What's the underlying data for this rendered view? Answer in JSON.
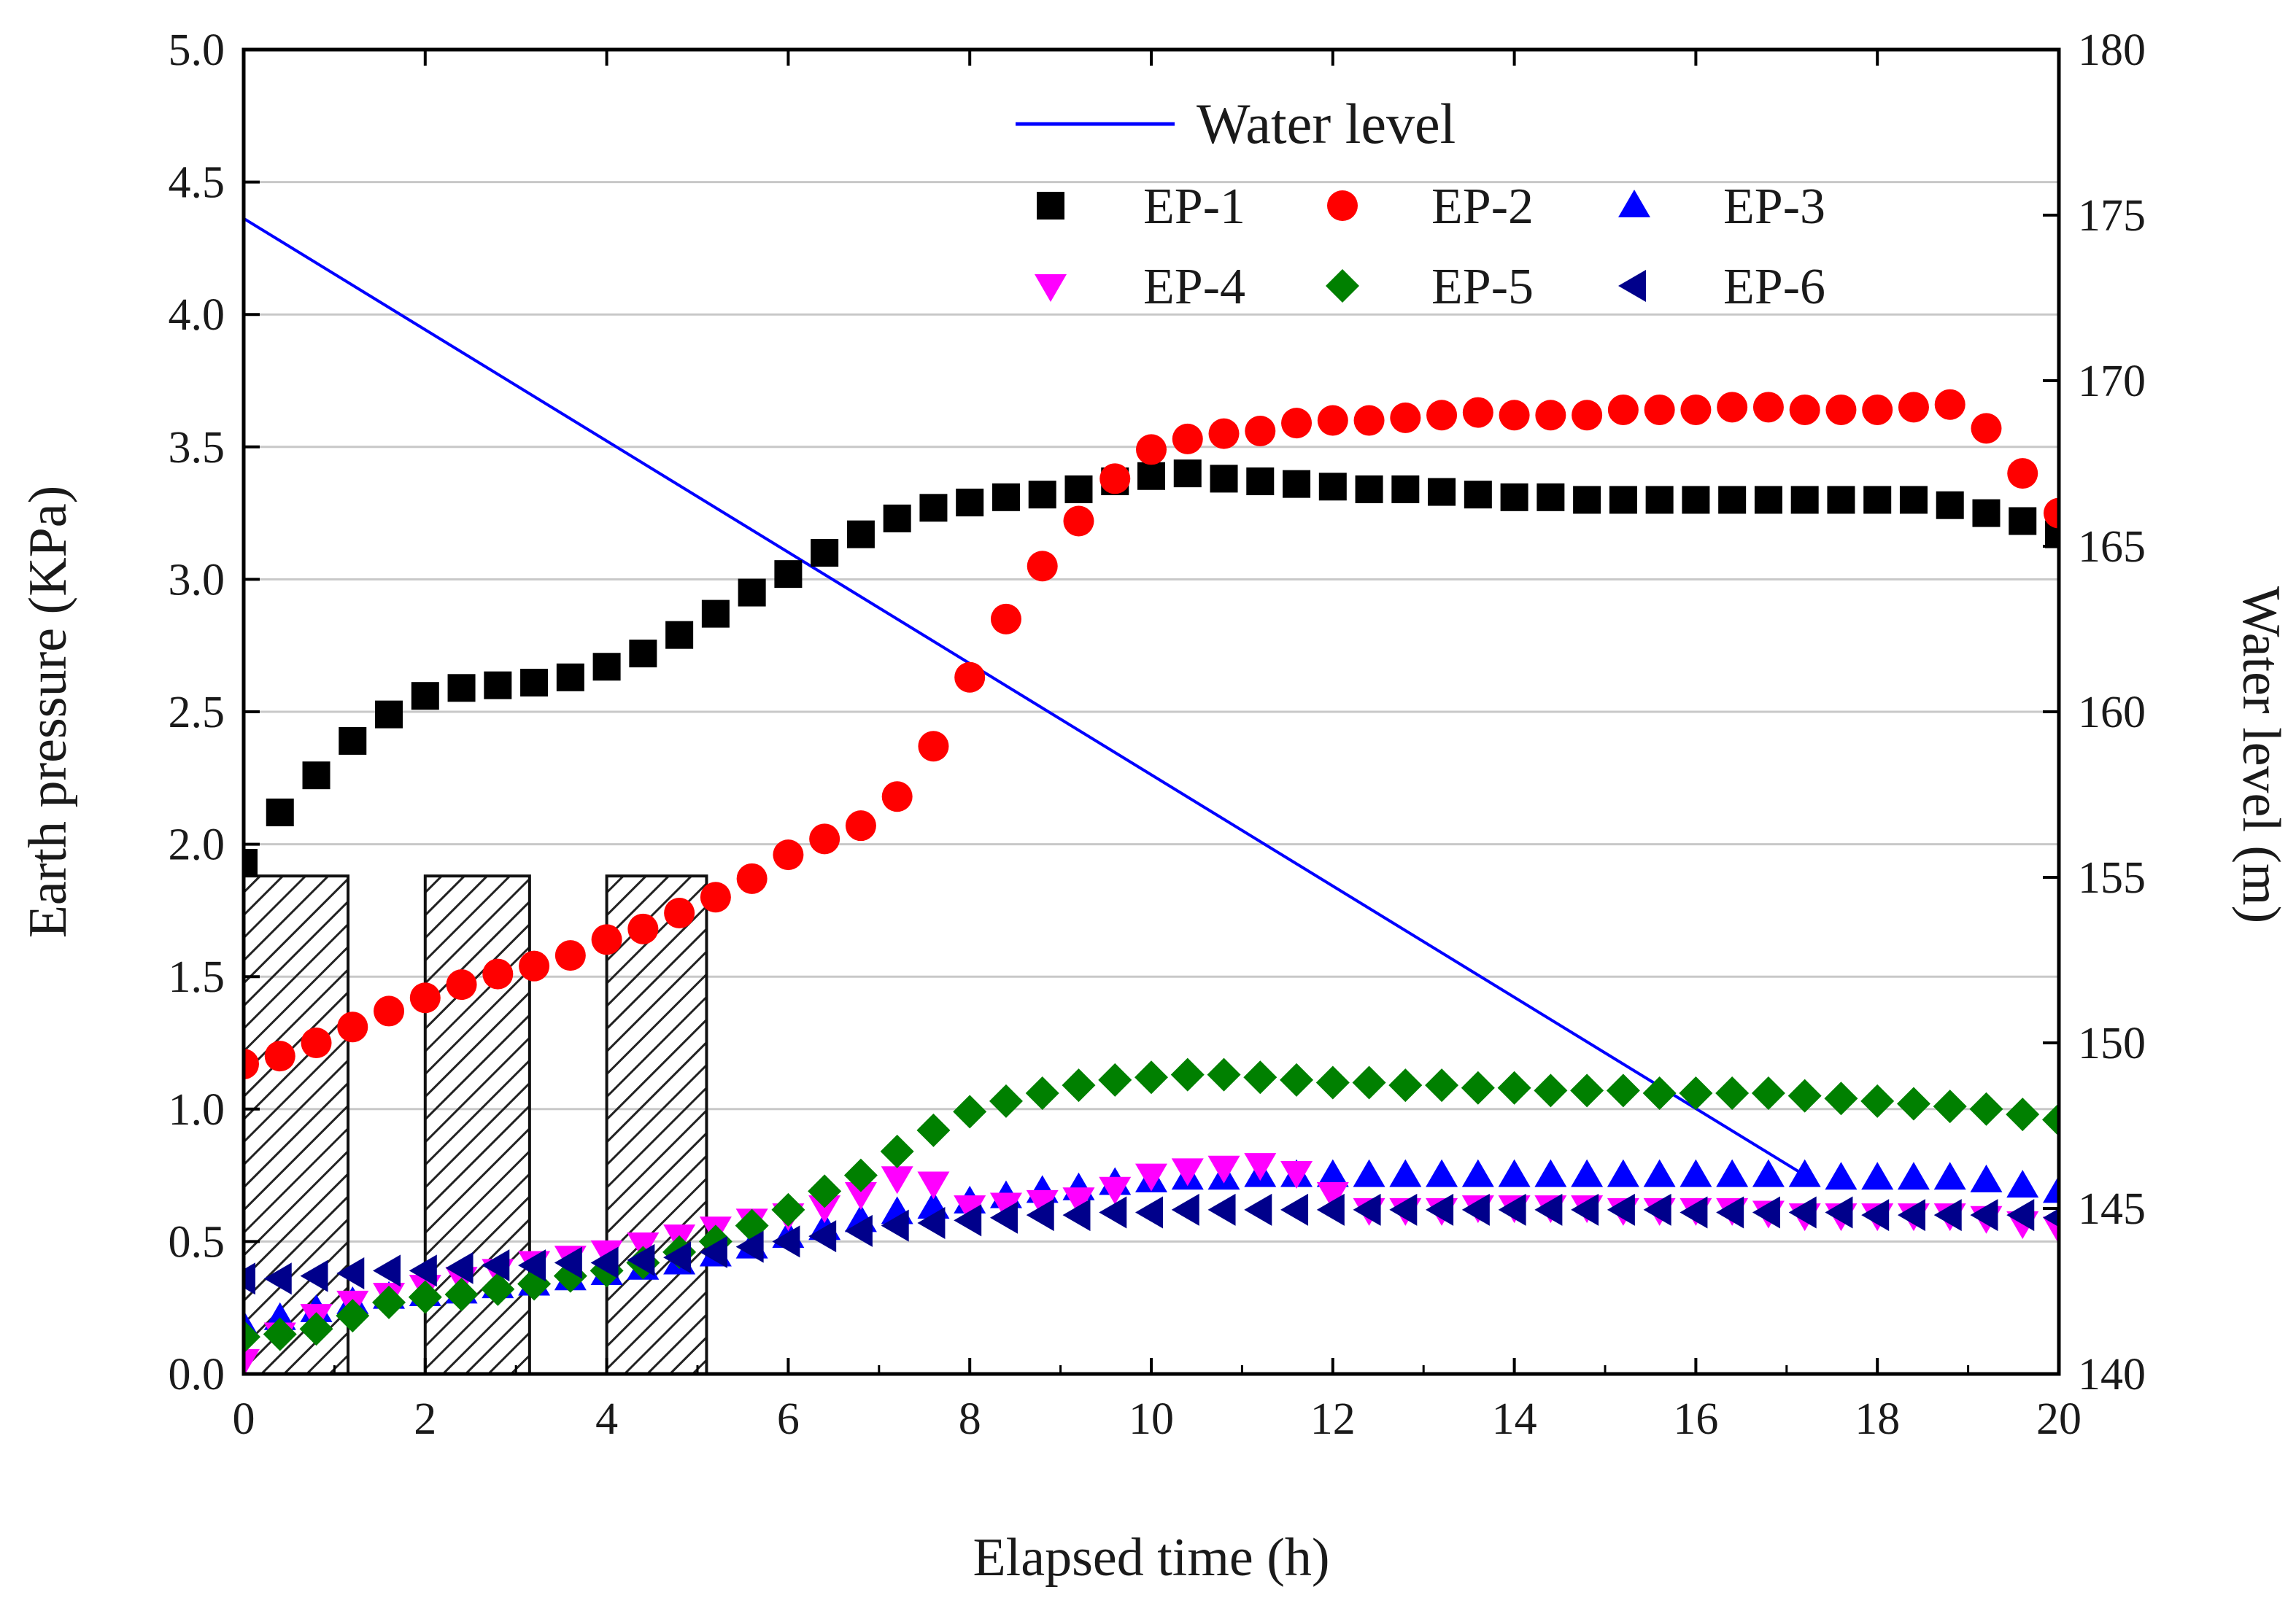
{
  "chart_data": {
    "type": "scatter",
    "xlabel": "Elapsed time (h)",
    "ylabel": "Earth pressure (KPa)",
    "y2label": "Water level (m)",
    "xlim": [
      0,
      20
    ],
    "ylim": [
      0.0,
      5.0
    ],
    "y2lim": [
      140,
      180
    ],
    "x_ticks": [
      "0",
      "2",
      "4",
      "6",
      "8",
      "10",
      "12",
      "14",
      "16",
      "18",
      "20"
    ],
    "y_ticks": [
      "0.0",
      "0.5",
      "1.0",
      "1.5",
      "2.0",
      "2.5",
      "3.0",
      "3.5",
      "4.0",
      "4.5",
      "5.0"
    ],
    "y2_ticks": [
      "140",
      "145",
      "150",
      "155",
      "160",
      "165",
      "170",
      "175",
      "180"
    ],
    "grid": true,
    "legend_position": "top-right",
    "colors": {
      "EP-1": "#000000",
      "EP-2": "#ff0000",
      "EP-3": "#0000ff",
      "EP-4": "#ff00ff",
      "EP-5": "#008000",
      "EP-6": "#00008b",
      "water": "#0000ff",
      "y2_axis_title": "#0000ff"
    },
    "rainfall_bars": [
      {
        "x_start": 0.0,
        "x_end": 1.15,
        "value": 1.88
      },
      {
        "x_start": 2.0,
        "x_end": 3.15,
        "value": 1.88
      },
      {
        "x_start": 4.0,
        "x_end": 5.1,
        "value": 1.88
      }
    ],
    "water_level": {
      "name": "Water level",
      "x": [
        0.0,
        17.2
      ],
      "y": [
        174.9,
        146.0
      ]
    },
    "series": [
      {
        "name": "EP-1",
        "marker": "square",
        "x": [
          0.0,
          0.4,
          0.8,
          1.2,
          1.6,
          2.0,
          2.4,
          2.8,
          3.2,
          3.6,
          4.0,
          4.4,
          4.8,
          5.2,
          5.6,
          6.0,
          6.4,
          6.8,
          7.2,
          7.6,
          8.0,
          8.4,
          8.8,
          9.2,
          9.6,
          10.0,
          10.4,
          10.8,
          11.2,
          11.6,
          12.0,
          12.4,
          12.8,
          13.2,
          13.6,
          14.0,
          14.4,
          14.8,
          15.2,
          15.6,
          16.0,
          16.4,
          16.8,
          17.2,
          17.6,
          18.0,
          18.4,
          18.8,
          19.2,
          19.6,
          20.0
        ],
        "y": [
          1.93,
          2.12,
          2.26,
          2.39,
          2.49,
          2.56,
          2.59,
          2.6,
          2.61,
          2.63,
          2.67,
          2.72,
          2.79,
          2.87,
          2.95,
          3.02,
          3.1,
          3.17,
          3.23,
          3.27,
          3.29,
          3.31,
          3.32,
          3.34,
          3.37,
          3.39,
          3.4,
          3.38,
          3.37,
          3.36,
          3.35,
          3.34,
          3.34,
          3.33,
          3.32,
          3.31,
          3.31,
          3.3,
          3.3,
          3.3,
          3.3,
          3.3,
          3.3,
          3.3,
          3.3,
          3.3,
          3.3,
          3.28,
          3.25,
          3.22,
          3.17
        ]
      },
      {
        "name": "EP-2",
        "marker": "circle",
        "x": [
          0.0,
          0.4,
          0.8,
          1.2,
          1.6,
          2.0,
          2.4,
          2.8,
          3.2,
          3.6,
          4.0,
          4.4,
          4.8,
          5.2,
          5.6,
          6.0,
          6.4,
          6.8,
          7.2,
          7.6,
          8.0,
          8.4,
          8.8,
          9.2,
          9.6,
          10.0,
          10.4,
          10.8,
          11.2,
          11.6,
          12.0,
          12.4,
          12.8,
          13.2,
          13.6,
          14.0,
          14.4,
          14.8,
          15.2,
          15.6,
          16.0,
          16.4,
          16.8,
          17.2,
          17.6,
          18.0,
          18.4,
          18.8,
          19.2,
          19.6,
          20.0
        ],
        "y": [
          1.17,
          1.2,
          1.25,
          1.31,
          1.37,
          1.42,
          1.47,
          1.51,
          1.54,
          1.58,
          1.64,
          1.68,
          1.74,
          1.8,
          1.87,
          1.96,
          2.02,
          2.07,
          2.18,
          2.37,
          2.63,
          2.85,
          3.05,
          3.22,
          3.38,
          3.49,
          3.53,
          3.55,
          3.56,
          3.59,
          3.6,
          3.6,
          3.61,
          3.62,
          3.63,
          3.62,
          3.62,
          3.62,
          3.64,
          3.64,
          3.64,
          3.65,
          3.65,
          3.64,
          3.64,
          3.64,
          3.65,
          3.66,
          3.57,
          3.4,
          3.25
        ]
      },
      {
        "name": "EP-3",
        "marker": "triangle-up",
        "x": [
          0.0,
          0.4,
          0.8,
          1.2,
          1.6,
          2.0,
          2.4,
          2.8,
          3.2,
          3.6,
          4.0,
          4.4,
          4.8,
          5.2,
          5.6,
          6.0,
          6.4,
          6.8,
          7.2,
          7.6,
          8.0,
          8.4,
          8.8,
          9.2,
          9.6,
          10.0,
          10.4,
          10.8,
          11.2,
          11.6,
          12.0,
          12.4,
          12.8,
          13.2,
          13.6,
          14.0,
          14.4,
          14.8,
          15.2,
          15.6,
          16.0,
          16.4,
          16.8,
          17.2,
          17.6,
          18.0,
          18.4,
          18.8,
          19.2,
          19.6,
          20.0
        ],
        "y": [
          0.18,
          0.21,
          0.24,
          0.27,
          0.29,
          0.3,
          0.31,
          0.33,
          0.34,
          0.36,
          0.38,
          0.4,
          0.42,
          0.45,
          0.48,
          0.52,
          0.55,
          0.58,
          0.61,
          0.63,
          0.65,
          0.67,
          0.69,
          0.7,
          0.72,
          0.73,
          0.74,
          0.74,
          0.75,
          0.75,
          0.75,
          0.75,
          0.75,
          0.75,
          0.75,
          0.75,
          0.75,
          0.75,
          0.75,
          0.75,
          0.75,
          0.75,
          0.75,
          0.75,
          0.74,
          0.74,
          0.74,
          0.74,
          0.73,
          0.71,
          0.69
        ]
      },
      {
        "name": "EP-4",
        "marker": "triangle-down",
        "x": [
          0.0,
          0.4,
          0.8,
          1.2,
          1.6,
          2.0,
          2.4,
          2.8,
          3.2,
          3.6,
          4.0,
          4.4,
          4.8,
          5.2,
          5.6,
          6.0,
          6.4,
          6.8,
          7.2,
          7.6,
          8.0,
          8.4,
          8.8,
          9.2,
          9.6,
          10.0,
          10.4,
          10.8,
          11.2,
          11.6,
          12.0,
          12.4,
          12.8,
          13.2,
          13.6,
          14.0,
          14.4,
          14.8,
          15.2,
          15.6,
          16.0,
          16.4,
          16.8,
          17.2,
          17.6,
          18.0,
          18.4,
          18.8,
          19.2,
          19.6,
          20.0
        ],
        "y": [
          0.05,
          0.15,
          0.22,
          0.27,
          0.3,
          0.33,
          0.36,
          0.39,
          0.42,
          0.44,
          0.46,
          0.49,
          0.52,
          0.55,
          0.58,
          0.6,
          0.63,
          0.68,
          0.74,
          0.72,
          0.63,
          0.64,
          0.65,
          0.66,
          0.7,
          0.75,
          0.77,
          0.78,
          0.79,
          0.76,
          0.68,
          0.62,
          0.62,
          0.62,
          0.63,
          0.63,
          0.63,
          0.63,
          0.62,
          0.62,
          0.62,
          0.62,
          0.61,
          0.6,
          0.6,
          0.6,
          0.6,
          0.6,
          0.59,
          0.57,
          0.55
        ]
      },
      {
        "name": "EP-5",
        "marker": "diamond",
        "x": [
          0.0,
          0.4,
          0.8,
          1.2,
          1.6,
          2.0,
          2.4,
          2.8,
          3.2,
          3.6,
          4.0,
          4.4,
          4.8,
          5.2,
          5.6,
          6.0,
          6.4,
          6.8,
          7.2,
          7.6,
          8.0,
          8.4,
          8.8,
          9.2,
          9.6,
          10.0,
          10.4,
          10.8,
          11.2,
          11.6,
          12.0,
          12.4,
          12.8,
          13.2,
          13.6,
          14.0,
          14.4,
          14.8,
          15.2,
          15.6,
          16.0,
          16.4,
          16.8,
          17.2,
          17.6,
          18.0,
          18.4,
          18.8,
          19.2,
          19.6,
          20.0
        ],
        "y": [
          0.14,
          0.15,
          0.17,
          0.22,
          0.27,
          0.29,
          0.3,
          0.32,
          0.34,
          0.37,
          0.39,
          0.42,
          0.46,
          0.5,
          0.56,
          0.62,
          0.69,
          0.75,
          0.84,
          0.92,
          0.99,
          1.03,
          1.06,
          1.09,
          1.11,
          1.12,
          1.13,
          1.13,
          1.12,
          1.11,
          1.1,
          1.1,
          1.09,
          1.09,
          1.08,
          1.08,
          1.07,
          1.07,
          1.07,
          1.06,
          1.06,
          1.06,
          1.06,
          1.05,
          1.04,
          1.03,
          1.02,
          1.01,
          1.0,
          0.98,
          0.96
        ]
      },
      {
        "name": "EP-6",
        "marker": "triangle-left",
        "x": [
          0.0,
          0.4,
          0.8,
          1.2,
          1.6,
          2.0,
          2.4,
          2.8,
          3.2,
          3.6,
          4.0,
          4.4,
          4.8,
          5.2,
          5.6,
          6.0,
          6.4,
          6.8,
          7.2,
          7.6,
          8.0,
          8.4,
          8.8,
          9.2,
          9.6,
          10.0,
          10.4,
          10.8,
          11.2,
          11.6,
          12.0,
          12.4,
          12.8,
          13.2,
          13.6,
          14.0,
          14.4,
          14.8,
          15.2,
          15.6,
          16.0,
          16.4,
          16.8,
          17.2,
          17.6,
          18.0,
          18.4,
          18.8,
          19.2,
          19.6,
          20.0
        ],
        "y": [
          0.36,
          0.36,
          0.37,
          0.38,
          0.39,
          0.39,
          0.4,
          0.41,
          0.41,
          0.42,
          0.42,
          0.43,
          0.44,
          0.46,
          0.48,
          0.5,
          0.52,
          0.54,
          0.56,
          0.57,
          0.58,
          0.59,
          0.6,
          0.6,
          0.61,
          0.61,
          0.62,
          0.62,
          0.62,
          0.62,
          0.62,
          0.62,
          0.62,
          0.62,
          0.62,
          0.62,
          0.62,
          0.62,
          0.62,
          0.62,
          0.61,
          0.61,
          0.61,
          0.61,
          0.61,
          0.6,
          0.6,
          0.6,
          0.6,
          0.6,
          0.59
        ]
      }
    ]
  }
}
